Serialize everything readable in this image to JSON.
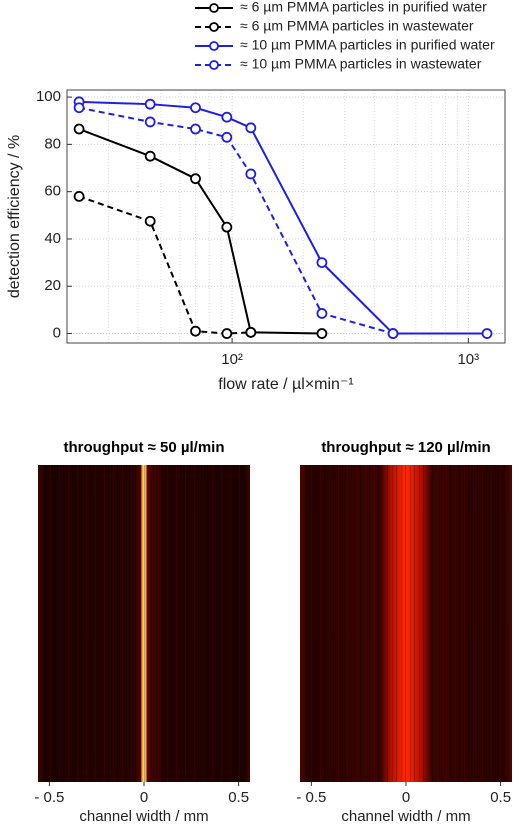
{
  "chart_data": [
    {
      "type": "line",
      "xlabel": "flow rate / µl×min⁻¹",
      "ylabel": "detection efficiency / %",
      "xscale": "log",
      "xlim": [
        20,
        1430
      ],
      "ylim": [
        -4,
        103
      ],
      "xticks": [
        {
          "value": 100,
          "label": "10²"
        },
        {
          "value": 1000,
          "label": "10³"
        }
      ],
      "yticks": [
        0,
        20,
        40,
        60,
        80,
        100
      ],
      "grid": true,
      "minor_grid": true,
      "legend": "top",
      "series": [
        {
          "name": "≈ 6 µm PMMA particles in purified water",
          "color": "#000000",
          "dash": false,
          "x": [
            22.5,
            45,
            70,
            95,
            120,
            240
          ],
          "values": [
            86.5,
            75,
            65.5,
            45,
            0.5,
            0
          ]
        },
        {
          "name": "≈ 6 µm PMMA particles in wastewater",
          "color": "#000000",
          "dash": true,
          "x": [
            22.5,
            45,
            70,
            95,
            120
          ],
          "values": [
            58,
            47.5,
            1,
            0,
            0.5
          ]
        },
        {
          "name": "≈ 10 µm PMMA particles in purified water",
          "color": "#1f1fe0",
          "dash": false,
          "x": [
            22.5,
            45,
            70,
            95,
            120,
            240,
            480,
            1200
          ],
          "values": [
            98,
            97,
            95.5,
            91.5,
            87,
            30,
            0,
            0
          ]
        },
        {
          "name": "≈ 10 µm PMMA particles in wastewater",
          "color": "#1f1fe0",
          "dash": true,
          "x": [
            22.5,
            45,
            70,
            95,
            120,
            240,
            480
          ],
          "values": [
            95.5,
            89.5,
            86.5,
            83,
            67.5,
            8.5,
            0
          ]
        }
      ]
    },
    {
      "type": "heatmap-image",
      "title": "throughput ≈ 50 µl/min",
      "xlabel": "channel width / mm",
      "xlim": [
        -0.56,
        0.56
      ],
      "xticks": [
        {
          "value": -0.5,
          "label": "- 0.5"
        },
        0,
        0.5
      ]
    },
    {
      "type": "heatmap-image",
      "title": "throughput ≈ 120 µl/min",
      "xlabel": "channel width / mm",
      "xlim": [
        -0.56,
        0.56
      ],
      "xticks": [
        {
          "value": -0.5,
          "label": "- 0.5"
        },
        0,
        0.5
      ]
    }
  ]
}
